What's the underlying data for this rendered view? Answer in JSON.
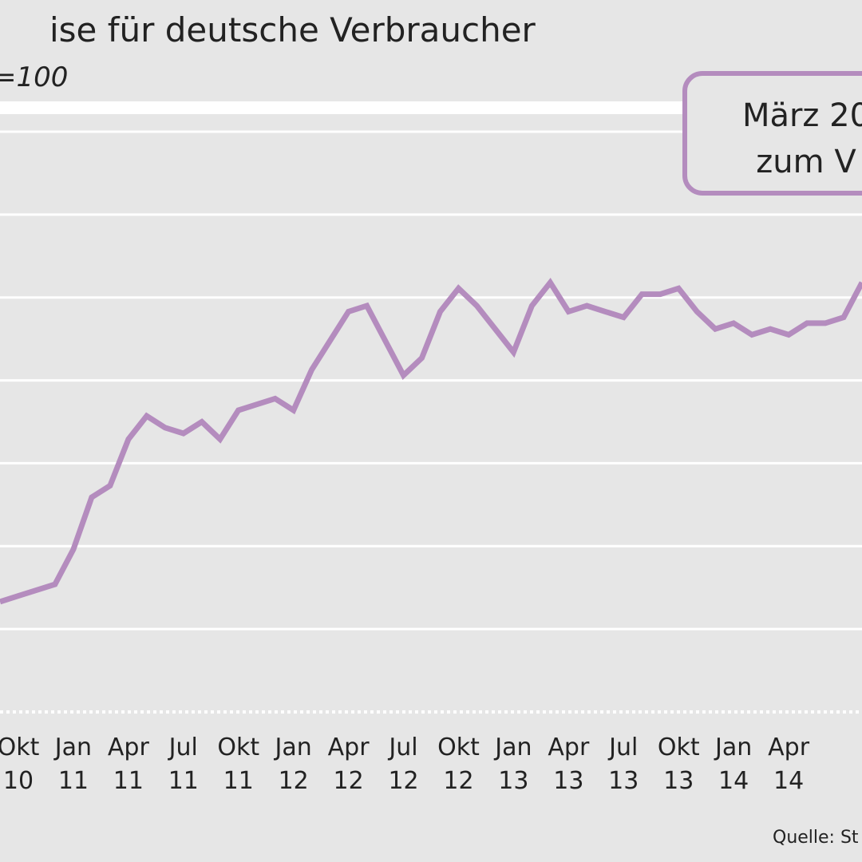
{
  "title": "ise für deutsche Verbraucher",
  "subtitle": "=100",
  "source": "Quelle: St",
  "callout": {
    "line1": "März 20",
    "line2": "zum V"
  },
  "colors": {
    "background": "#e6e6e6",
    "line": "#b48cbe",
    "grid": "#ffffff",
    "callout_border": "#b48cbe"
  },
  "chart_data": {
    "type": "line",
    "x_ticks": [
      {
        "month": "Okt",
        "year": "10"
      },
      {
        "month": "Jan",
        "year": "11"
      },
      {
        "month": "Apr",
        "year": "11"
      },
      {
        "month": "Jul",
        "year": "11"
      },
      {
        "month": "Okt",
        "year": "11"
      },
      {
        "month": "Jan",
        "year": "12"
      },
      {
        "month": "Apr",
        "year": "12"
      },
      {
        "month": "Jul",
        "year": "12"
      },
      {
        "month": "Okt",
        "year": "12"
      },
      {
        "month": "Jan",
        "year": "13"
      },
      {
        "month": "Apr",
        "year": "13"
      },
      {
        "month": "Jul",
        "year": "13"
      },
      {
        "month": "Okt",
        "year": "13"
      },
      {
        "month": "Jan",
        "year": "14"
      },
      {
        "month": "Apr",
        "year": "14"
      }
    ],
    "x_range": [
      0,
      47
    ],
    "y_range": [
      0,
      100
    ],
    "grid": true,
    "series": [
      {
        "x": [
          0,
          1,
          2,
          3,
          4,
          5,
          6,
          7,
          8,
          9,
          10,
          11,
          12,
          13,
          14,
          15,
          16,
          17,
          18,
          19,
          20,
          21,
          22,
          23,
          24,
          25,
          26,
          27,
          28,
          29,
          30,
          31,
          32,
          33,
          34,
          35,
          36,
          37,
          38,
          39,
          40,
          41,
          42,
          43,
          44,
          45,
          46,
          47
        ],
        "values": [
          19,
          20,
          21,
          22,
          28,
          37,
          39,
          47,
          51,
          49,
          48,
          50,
          47,
          52,
          53,
          54,
          52,
          59,
          64,
          69,
          70,
          64,
          58,
          61,
          69,
          73,
          70,
          66,
          62,
          70,
          74,
          69,
          70,
          69,
          68,
          72,
          72,
          73,
          69,
          66,
          67,
          65,
          66,
          65,
          67,
          67,
          68,
          74
        ]
      }
    ]
  }
}
